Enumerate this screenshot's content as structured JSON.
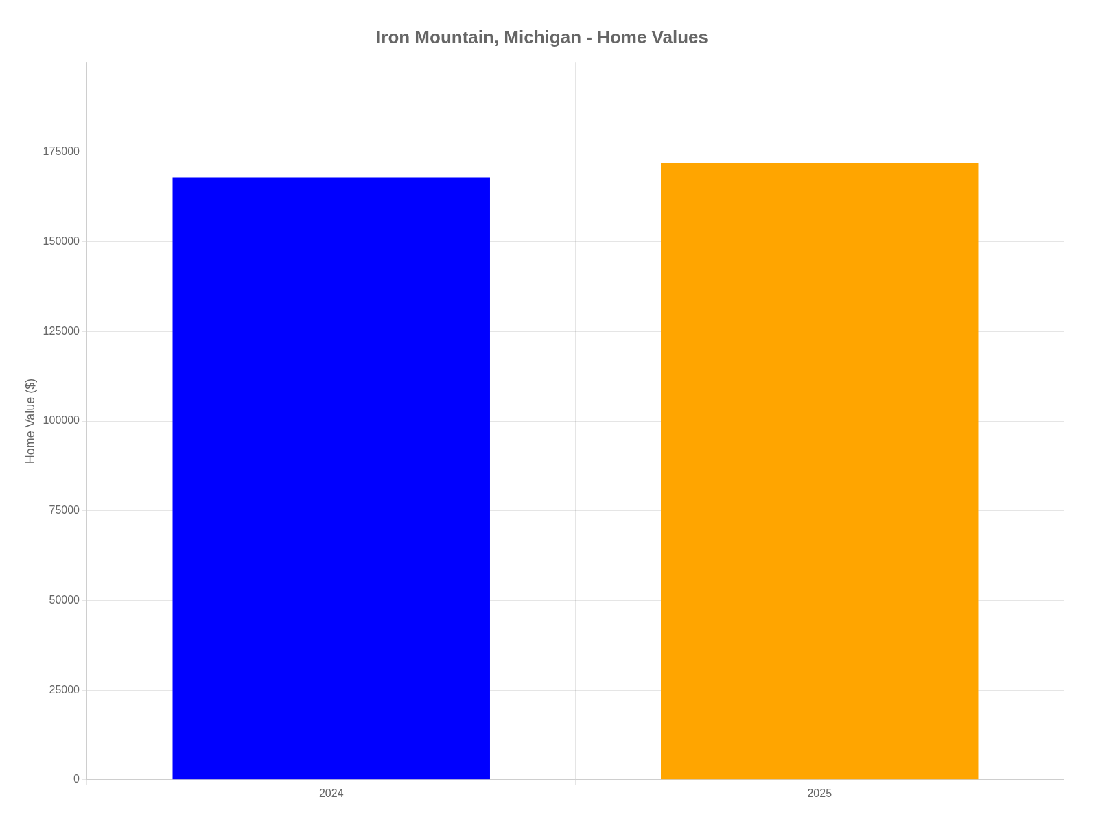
{
  "chart_data": {
    "type": "bar",
    "title": "Iron Mountain, Michigan - Home Values",
    "categories": [
      "2024",
      "2025"
    ],
    "values": [
      168000,
      172000
    ],
    "colors": [
      "#0000ff",
      "#ffa500"
    ],
    "ylabel": "Home Value ($)",
    "ylim": [
      0,
      200000
    ],
    "yticks": [
      0,
      25000,
      50000,
      75000,
      100000,
      125000,
      150000,
      175000
    ],
    "grid": true
  }
}
